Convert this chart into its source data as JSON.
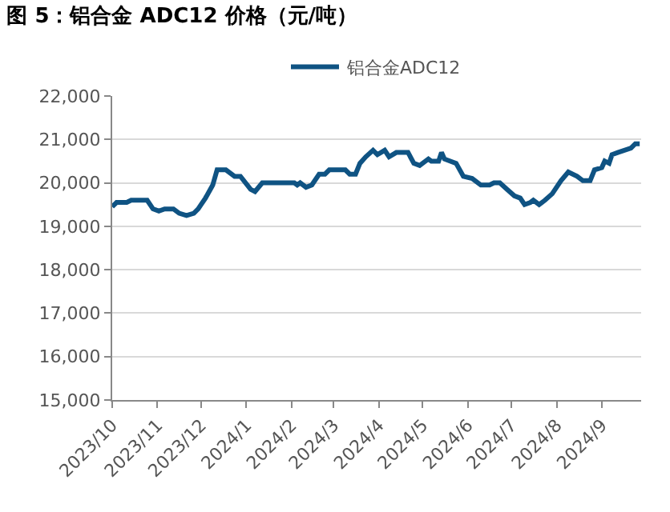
{
  "chart_data": {
    "type": "line",
    "title": "图 5：铝合金 ADC12 价格（元/吨）",
    "x": [
      "2023-10-01",
      "2023-10-04",
      "2023-10-11",
      "2023-10-14",
      "2023-10-25",
      "2023-10-29",
      "2023-11-02",
      "2023-11-06",
      "2023-11-12",
      "2023-11-16",
      "2023-11-21",
      "2023-11-26",
      "2023-11-29",
      "2023-12-04",
      "2023-12-09",
      "2023-12-12",
      "2023-12-18",
      "2023-12-24",
      "2023-12-28",
      "2024-01-04",
      "2024-01-07",
      "2024-01-12",
      "2024-02-03",
      "2024-02-05",
      "2024-02-07",
      "2024-02-11",
      "2024-02-15",
      "2024-02-20",
      "2024-02-24",
      "2024-02-27",
      "2024-03-09",
      "2024-03-12",
      "2024-03-16",
      "2024-03-19",
      "2024-03-23",
      "2024-03-28",
      "2024-03-31",
      "2024-04-05",
      "2024-04-08",
      "2024-04-13",
      "2024-04-21",
      "2024-04-25",
      "2024-04-29",
      "2024-05-05",
      "2024-05-07",
      "2024-05-12",
      "2024-05-14",
      "2024-05-16",
      "2024-05-24",
      "2024-05-29",
      "2024-06-04",
      "2024-06-10",
      "2024-06-16",
      "2024-06-19",
      "2024-06-23",
      "2024-06-28",
      "2024-07-03",
      "2024-07-07",
      "2024-07-10",
      "2024-07-14",
      "2024-07-16",
      "2024-07-20",
      "2024-07-24",
      "2024-07-29",
      "2024-08-04",
      "2024-08-09",
      "2024-08-15",
      "2024-08-19",
      "2024-08-24",
      "2024-08-27",
      "2024-09-01",
      "2024-09-03",
      "2024-09-06",
      "2024-09-08",
      "2024-09-12",
      "2024-09-21",
      "2024-09-24",
      "2024-09-27"
    ],
    "series": [
      {
        "name": "铝合金ADC12",
        "color": "#0f5383",
        "values": [
          19450,
          19550,
          19550,
          19600,
          19600,
          19400,
          19350,
          19400,
          19400,
          19300,
          19250,
          19300,
          19400,
          19650,
          19950,
          20300,
          20300,
          20150,
          20150,
          19850,
          19800,
          20000,
          20000,
          19950,
          20000,
          19900,
          19950,
          20200,
          20200,
          20300,
          20300,
          20200,
          20200,
          20450,
          20600,
          20750,
          20650,
          20750,
          20600,
          20700,
          20700,
          20450,
          20400,
          20550,
          20500,
          20500,
          20700,
          20550,
          20450,
          20150,
          20100,
          19950,
          19950,
          20000,
          20000,
          19850,
          19700,
          19650,
          19500,
          19550,
          19600,
          19500,
          19600,
          19750,
          20050,
          20250,
          20150,
          20050,
          20050,
          20300,
          20350,
          20500,
          20450,
          20650,
          20700,
          20800,
          20900,
          20900
        ]
      }
    ],
    "xlim": [
      "2023-10-01",
      "2024-09-28"
    ],
    "xticks": [
      {
        "value": "2023-10-01",
        "label": "2023/10"
      },
      {
        "value": "2023-11-01",
        "label": "2023/11"
      },
      {
        "value": "2023-12-01",
        "label": "2023/12"
      },
      {
        "value": "2024-01-01",
        "label": "2024/1"
      },
      {
        "value": "2024-02-01",
        "label": "2024/2"
      },
      {
        "value": "2024-03-01",
        "label": "2024/3"
      },
      {
        "value": "2024-04-01",
        "label": "2024/4"
      },
      {
        "value": "2024-05-01",
        "label": "2024/5"
      },
      {
        "value": "2024-06-01",
        "label": "2024/6"
      },
      {
        "value": "2024-07-01",
        "label": "2024/7"
      },
      {
        "value": "2024-08-01",
        "label": "2024/8"
      },
      {
        "value": "2024-09-01",
        "label": "2024/9"
      }
    ],
    "ylim": [
      15000,
      22000
    ],
    "yticks": [
      {
        "value": 15000,
        "label": "15,000"
      },
      {
        "value": 16000,
        "label": "16,000"
      },
      {
        "value": 17000,
        "label": "17,000"
      },
      {
        "value": 18000,
        "label": "18,000"
      },
      {
        "value": 19000,
        "label": "19,000"
      },
      {
        "value": 20000,
        "label": "20,000"
      },
      {
        "value": 21000,
        "label": "21,000"
      },
      {
        "value": 22000,
        "label": "22,000"
      }
    ],
    "grid": "y",
    "legend": "top",
    "marker": "none",
    "line_style": "solid"
  }
}
